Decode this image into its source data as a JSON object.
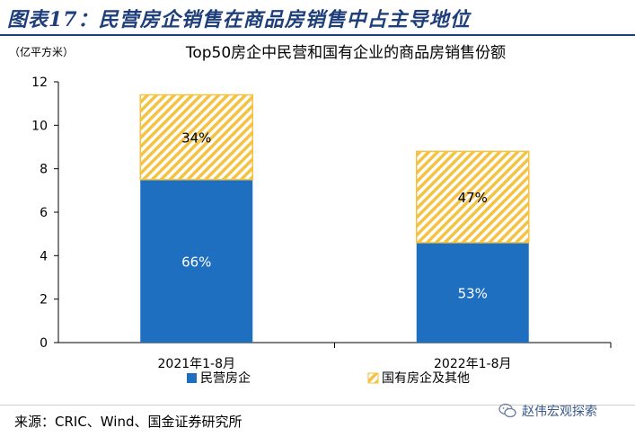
{
  "figure": {
    "title": "图表17：民营房企销售在商品房销售中占主导地位",
    "source": "来源：CRIC、Wind、国金证券研究所",
    "watermark": "赵伟宏观探索",
    "watermark_icon": "wechat-icon"
  },
  "chart_data": {
    "type": "bar",
    "stacked": true,
    "title": "Top50房企中民营和国有企业的商品房销售份额",
    "ylabel": "（亿平方米）",
    "xlabel": "",
    "categories": [
      "2021年1-8月",
      "2022年1-8月"
    ],
    "ylim": [
      0,
      12
    ],
    "yticks": [
      0,
      2,
      4,
      6,
      8,
      10,
      12
    ],
    "grid": false,
    "legend_position": "bottom",
    "series": [
      {
        "name": "民营房企",
        "values": [
          7.5,
          4.6
        ],
        "labels": [
          "66%",
          "53%"
        ],
        "color": "#1f6fc1",
        "pattern": "solid"
      },
      {
        "name": "国有房企及其他",
        "values": [
          3.9,
          4.2
        ],
        "labels": [
          "34%",
          "47%"
        ],
        "color": "#f5c242",
        "pattern": "hatched"
      }
    ]
  }
}
